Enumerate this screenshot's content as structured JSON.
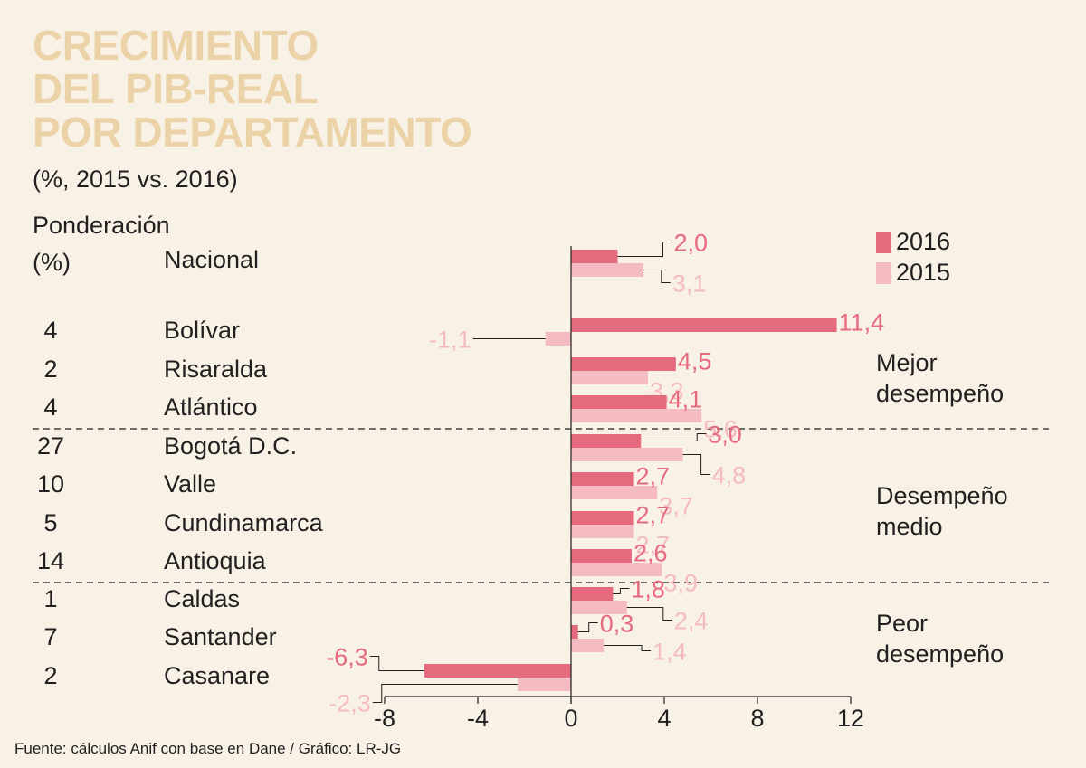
{
  "title_lines": [
    "CRECIMIENTO",
    "DEL PIB-REAL",
    "POR DEPARTAMENTO"
  ],
  "subtitle": "(%, 2015 vs. 2016)",
  "ponderacion_header": [
    "Ponderación",
    "(%)"
  ],
  "source": "Fuente: cálculos Anif con base en Dane / Gráfico: LR-JG",
  "colors": {
    "s2016": "#e66a7e",
    "s2015": "#f4bcc2",
    "title": "#ecd3a7",
    "background": "#f8f1e6"
  },
  "groups": [
    {
      "label_lines": [
        "Mejor",
        "desempeño"
      ]
    },
    {
      "label_lines": [
        "Desempeño",
        "medio"
      ]
    },
    {
      "label_lines": [
        "Peor",
        "desempeño"
      ]
    }
  ],
  "chart_data": {
    "type": "bar",
    "orientation": "horizontal",
    "title": "CRECIMIENTO DEL PIB-REAL POR DEPARTAMENTO",
    "subtitle": "(%, 2015 vs. 2016)",
    "categories": [
      "Nacional",
      "Bolívar",
      "Risaralda",
      "Atlántico",
      "Bogotá D.C.",
      "Valle",
      "Cundinamarca",
      "Antioquia",
      "Caldas",
      "Santander",
      "Casanare"
    ],
    "weights": [
      "",
      "4",
      "2",
      "4",
      "27",
      "10",
      "5",
      "14",
      "1",
      "7",
      "2"
    ],
    "series": [
      {
        "name": "2016",
        "values": [
          2.0,
          11.4,
          4.5,
          4.1,
          3.0,
          2.7,
          2.7,
          2.6,
          1.8,
          0.3,
          -6.3
        ],
        "labels": [
          "2,0",
          "11,4",
          "4,5",
          "4,1",
          "3,0",
          "2,7",
          "2,7",
          "2,6",
          "1,8",
          "0,3",
          "-6,3"
        ]
      },
      {
        "name": "2015",
        "values": [
          3.1,
          -1.1,
          3.3,
          5.6,
          4.8,
          3.7,
          2.7,
          3.9,
          2.4,
          1.4,
          -2.3
        ],
        "labels": [
          "3,1",
          "-1,1",
          "3,3",
          "5,6",
          "4,8",
          "3,7",
          "2,7",
          "3,9",
          "2,4",
          "1,4",
          "-2,3"
        ]
      }
    ],
    "xlim": [
      -8,
      12
    ],
    "xticks": [
      -8,
      -4,
      0,
      4,
      8,
      12
    ],
    "xtick_labels": [
      "-8",
      "-4",
      "0",
      "4",
      "8",
      "12"
    ],
    "legend": "top-right"
  }
}
